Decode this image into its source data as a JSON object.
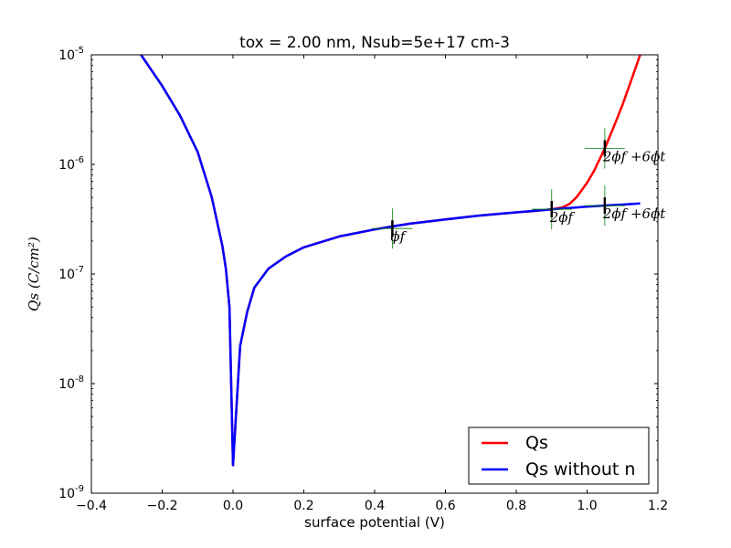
{
  "chart_data": {
    "type": "line",
    "title": "tox =  2.00 nm, Nsub=5e+17 cm-3",
    "xlabel": "surface potential (V)",
    "ylabel": "Qs (C/cm²)",
    "xlim": [
      -0.4,
      1.2
    ],
    "ylim": [
      1e-09,
      1e-05
    ],
    "yscale": "log",
    "grid": false,
    "legend_position": "bottom-right",
    "x_ticks": [
      -0.4,
      -0.2,
      0.0,
      0.2,
      0.4,
      0.6,
      0.8,
      1.0,
      1.2
    ],
    "x_tick_labels": [
      "−0.4",
      "−0.2",
      "0.0",
      "0.2",
      "0.4",
      "0.6",
      "0.8",
      "1.0",
      "1.2"
    ],
    "y_ticks": [
      1e-09,
      1e-08,
      1e-07,
      1e-06,
      1e-05
    ],
    "y_tick_labels": [
      {
        "base": "10",
        "exp": "-9"
      },
      {
        "base": "10",
        "exp": "-8"
      },
      {
        "base": "10",
        "exp": "-7"
      },
      {
        "base": "10",
        "exp": "-6"
      },
      {
        "base": "10",
        "exp": "-5"
      }
    ],
    "series": [
      {
        "name": "Qs",
        "color": "#ff0000",
        "x": [
          -0.26,
          -0.2,
          -0.15,
          -0.1,
          -0.06,
          -0.03,
          -0.02,
          -0.01,
          0.0,
          0.02,
          0.04,
          0.06,
          0.1,
          0.15,
          0.2,
          0.3,
          0.4,
          0.45,
          0.5,
          0.6,
          0.7,
          0.8,
          0.85,
          0.9,
          0.93,
          0.95,
          0.97,
          1.0,
          1.02,
          1.05,
          1.08,
          1.1,
          1.12,
          1.15
        ],
        "y": [
          1e-05,
          5.2e-06,
          2.8e-06,
          1.3e-06,
          5e-07,
          1.8e-07,
          1.1e-07,
          5e-08,
          1.8e-09,
          2.2e-08,
          4.5e-08,
          7.5e-08,
          1.12e-07,
          1.45e-07,
          1.75e-07,
          2.2e-07,
          2.55e-07,
          2.72e-07,
          2.88e-07,
          3.15e-07,
          3.42e-07,
          3.65e-07,
          3.75e-07,
          3.9e-07,
          4.05e-07,
          4.35e-07,
          5e-07,
          6.8e-07,
          8.8e-07,
          1.4e-06,
          2.4e-06,
          3.5e-06,
          5.3e-06,
          1e-05
        ]
      },
      {
        "name": "Qs without n",
        "color": "#0000ff",
        "x": [
          -0.26,
          -0.2,
          -0.15,
          -0.1,
          -0.06,
          -0.03,
          -0.02,
          -0.01,
          0.0,
          0.02,
          0.04,
          0.06,
          0.1,
          0.15,
          0.2,
          0.3,
          0.4,
          0.45,
          0.5,
          0.6,
          0.7,
          0.8,
          0.9,
          1.0,
          1.05,
          1.1,
          1.15
        ],
        "y": [
          1e-05,
          5.2e-06,
          2.8e-06,
          1.3e-06,
          5e-07,
          1.8e-07,
          1.1e-07,
          5e-08,
          1.8e-09,
          2.2e-08,
          4.5e-08,
          7.5e-08,
          1.12e-07,
          1.45e-07,
          1.75e-07,
          2.2e-07,
          2.55e-07,
          2.72e-07,
          2.88e-07,
          3.15e-07,
          3.42e-07,
          3.65e-07,
          3.88e-07,
          4.12e-07,
          4.22e-07,
          4.3e-07,
          4.4e-07
        ]
      }
    ],
    "annotations": [
      {
        "label": "ϕf",
        "x": 0.45,
        "y": 2.6e-07
      },
      {
        "label": "2ϕf",
        "x": 0.9,
        "y": 3.9e-07
      },
      {
        "label": "2ϕf +6ϕt",
        "x": 1.05,
        "y": 1.4e-06
      },
      {
        "label": "2ϕf +6ϕt",
        "x": 1.05,
        "y": 4.2e-07
      }
    ],
    "marker_color": "#008000"
  }
}
